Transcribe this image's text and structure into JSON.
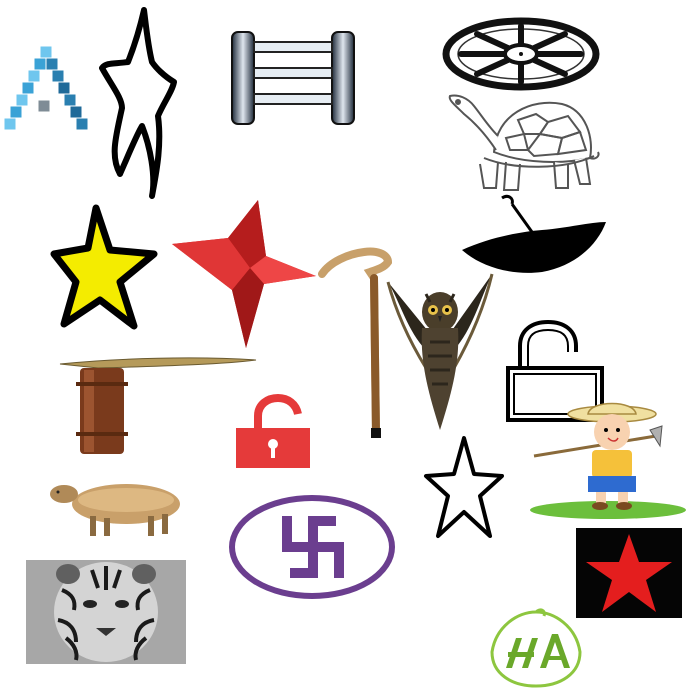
{
  "objects": [
    {
      "id": "stair-triangle",
      "icon": "isometric-cube-stairs-icon",
      "color": "#3a9bc9"
    },
    {
      "id": "outline-star-wavy",
      "icon": "hand-drawn-star-icon",
      "color": "#000000"
    },
    {
      "id": "ladder",
      "icon": "ladder-icon",
      "color": "#1e2a3a"
    },
    {
      "id": "wheel",
      "icon": "wagon-wheel-icon",
      "color": "#111111"
    },
    {
      "id": "tortoise",
      "icon": "tortoise-outline-icon",
      "color": "#555555"
    },
    {
      "id": "yellow-star",
      "icon": "yellow-star-icon",
      "color": "#f4ec00"
    },
    {
      "id": "red-star-3d",
      "icon": "red-3d-star-icon",
      "color": "#d42a2a"
    },
    {
      "id": "walking-cane",
      "icon": "walking-cane-icon",
      "color": "#a06a3a"
    },
    {
      "id": "umbrella",
      "icon": "upside-down-umbrella-icon",
      "color": "#000000"
    },
    {
      "id": "owl",
      "icon": "owl-icon",
      "color": "#3a3326"
    },
    {
      "id": "open-padlock-outline",
      "icon": "unlocked-padlock-outline-icon",
      "color": "#000000"
    },
    {
      "id": "scythe",
      "icon": "scythe-icon",
      "color": "#7a4422"
    },
    {
      "id": "red-padlock",
      "icon": "red-open-padlock-icon",
      "color": "#e53a3a"
    },
    {
      "id": "farmer-boy",
      "icon": "cartoon-farmer-boy-icon",
      "color": "#f5c13a"
    },
    {
      "id": "outline-star",
      "icon": "black-outline-star-icon",
      "color": "#000000"
    },
    {
      "id": "sheep",
      "icon": "sheep-icon",
      "color": "#b08a58"
    },
    {
      "id": "swastika-emblem",
      "icon": "purple-swastika-emblem-icon",
      "color": "#6b3e8f"
    },
    {
      "id": "red-star-black-square",
      "icon": "red-star-on-black-icon",
      "color": "#e41e1e"
    },
    {
      "id": "tiger",
      "icon": "grayscale-tiger-photo-icon",
      "color": "#7a7a7a"
    },
    {
      "id": "green-logo",
      "icon": "green-leaf-logo-icon",
      "color": "#8dc63f"
    }
  ]
}
